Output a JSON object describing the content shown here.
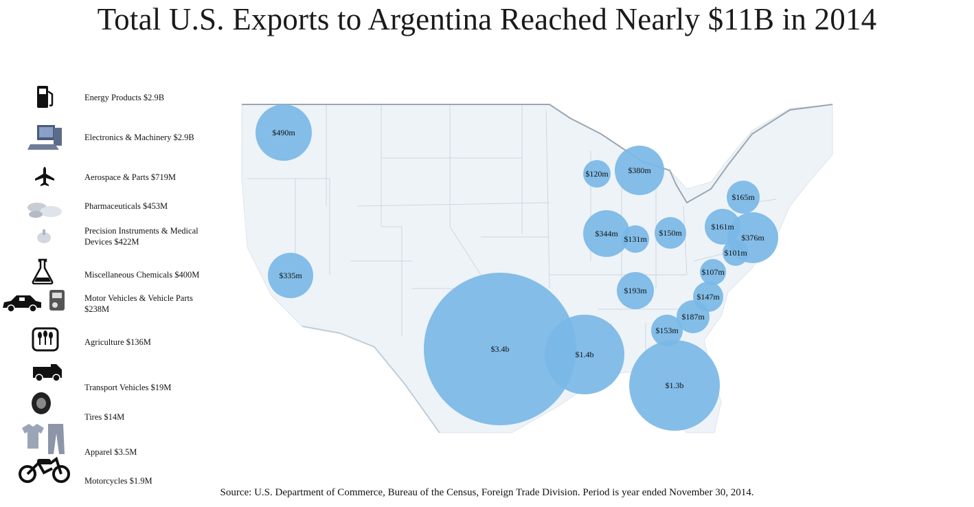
{
  "title": "Total U.S. Exports to Argentina Reached Nearly $11B in 2014",
  "source": "Source:  U.S. Department of Commerce, Bureau of the Census, Foreign Trade Division.  Period is year ended November 30, 2014.",
  "colors": {
    "bubble": "#79b9e6",
    "map_land": "#eef3f8",
    "map_border": "#c9d3dd",
    "national_border": "#9aa6b2"
  },
  "legend": [
    {
      "icon": "fuel-pump-icon",
      "lines": [
        "Energy Products $2.9B"
      ]
    },
    {
      "icon": "computer-icon",
      "lines": [
        "Electronics & Machinery $2.9B"
      ]
    },
    {
      "icon": "airplane-icon",
      "lines": [
        "Aerospace & Parts $719M"
      ]
    },
    {
      "icon": "pills-icon",
      "lines": [
        "Pharmaceuticals $453M"
      ]
    },
    {
      "icon": "medical-instrument-icon",
      "lines": [
        "Precision Instruments & Medical",
        "Devices $422M"
      ]
    },
    {
      "icon": "flask-icon",
      "lines": [
        "Miscellaneous Chemicals $400M"
      ]
    },
    {
      "icon": "car-and-engine-icon",
      "lines": [
        "Motor Vehicles & Vehicle Parts",
        "$238M"
      ]
    },
    {
      "icon": "plants-icon",
      "lines": [
        "Agriculture $136M"
      ]
    },
    {
      "icon": "truck-icon",
      "lines": [
        "Transport Vehicles $19M"
      ]
    },
    {
      "icon": "tire-icon",
      "lines": [
        "Tires $14M"
      ]
    },
    {
      "icon": "clothing-icon",
      "lines": [
        "Apparel $3.5M"
      ]
    },
    {
      "icon": "motorcycle-icon",
      "lines": [
        "Motorcycles $1.9M"
      ]
    }
  ],
  "bubbles": [
    {
      "label": "$490m",
      "value_m": 490
    },
    {
      "label": "$335m",
      "value_m": 335
    },
    {
      "label": "$3.4b",
      "value_m": 3400
    },
    {
      "label": "$1.4b",
      "value_m": 1400
    },
    {
      "label": "$1.3b",
      "value_m": 1300
    },
    {
      "label": "$120m",
      "value_m": 120
    },
    {
      "label": "$380m",
      "value_m": 380
    },
    {
      "label": "$344m",
      "value_m": 344
    },
    {
      "label": "$131m",
      "value_m": 131
    },
    {
      "label": "$150m",
      "value_m": 150
    },
    {
      "label": "$165m",
      "value_m": 165
    },
    {
      "label": "$161m",
      "value_m": 161
    },
    {
      "label": "$376m",
      "value_m": 376
    },
    {
      "label": "$101m",
      "value_m": 101
    },
    {
      "label": "$107m",
      "value_m": 107
    },
    {
      "label": "$193m",
      "value_m": 193
    },
    {
      "label": "$147m",
      "value_m": 147
    },
    {
      "label": "$187m",
      "value_m": 187
    },
    {
      "label": "$153m",
      "value_m": 153
    }
  ]
}
